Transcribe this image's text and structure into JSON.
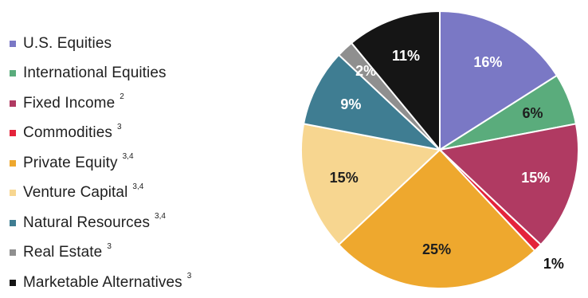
{
  "chart_data": {
    "type": "pie",
    "title": "",
    "slices": [
      {
        "label": "U.S. Equities",
        "note": "",
        "value": 16,
        "display": "16%",
        "color": "#7a78c5"
      },
      {
        "label": "International Equities",
        "note": "",
        "value": 6,
        "display": "6%",
        "color": "#5aac7c"
      },
      {
        "label": "Fixed Income",
        "note": "2",
        "value": 15,
        "display": "15%",
        "color": "#b03a62"
      },
      {
        "label": "Commodities",
        "note": "3",
        "value": 1,
        "display": "1%",
        "color": "#e4233b"
      },
      {
        "label": "Private Equity",
        "note": "3,4",
        "value": 25,
        "display": "25%",
        "color": "#eea82e"
      },
      {
        "label": "Venture Capital",
        "note": "3,4",
        "value": 15,
        "display": "15%",
        "color": "#f7d690"
      },
      {
        "label": "Natural Resources",
        "note": "3,4",
        "value": 9,
        "display": "9%",
        "color": "#3f7d92"
      },
      {
        "label": "Real Estate",
        "note": "3",
        "value": 2,
        "display": "2%",
        "color": "#8f8f8f"
      },
      {
        "label": "Marketable Alternatives",
        "note": "3",
        "value": 11,
        "display": "11%",
        "color": "#151515"
      }
    ],
    "legend_position": "left",
    "start_angle_deg": 0,
    "direction": "clockwise"
  }
}
